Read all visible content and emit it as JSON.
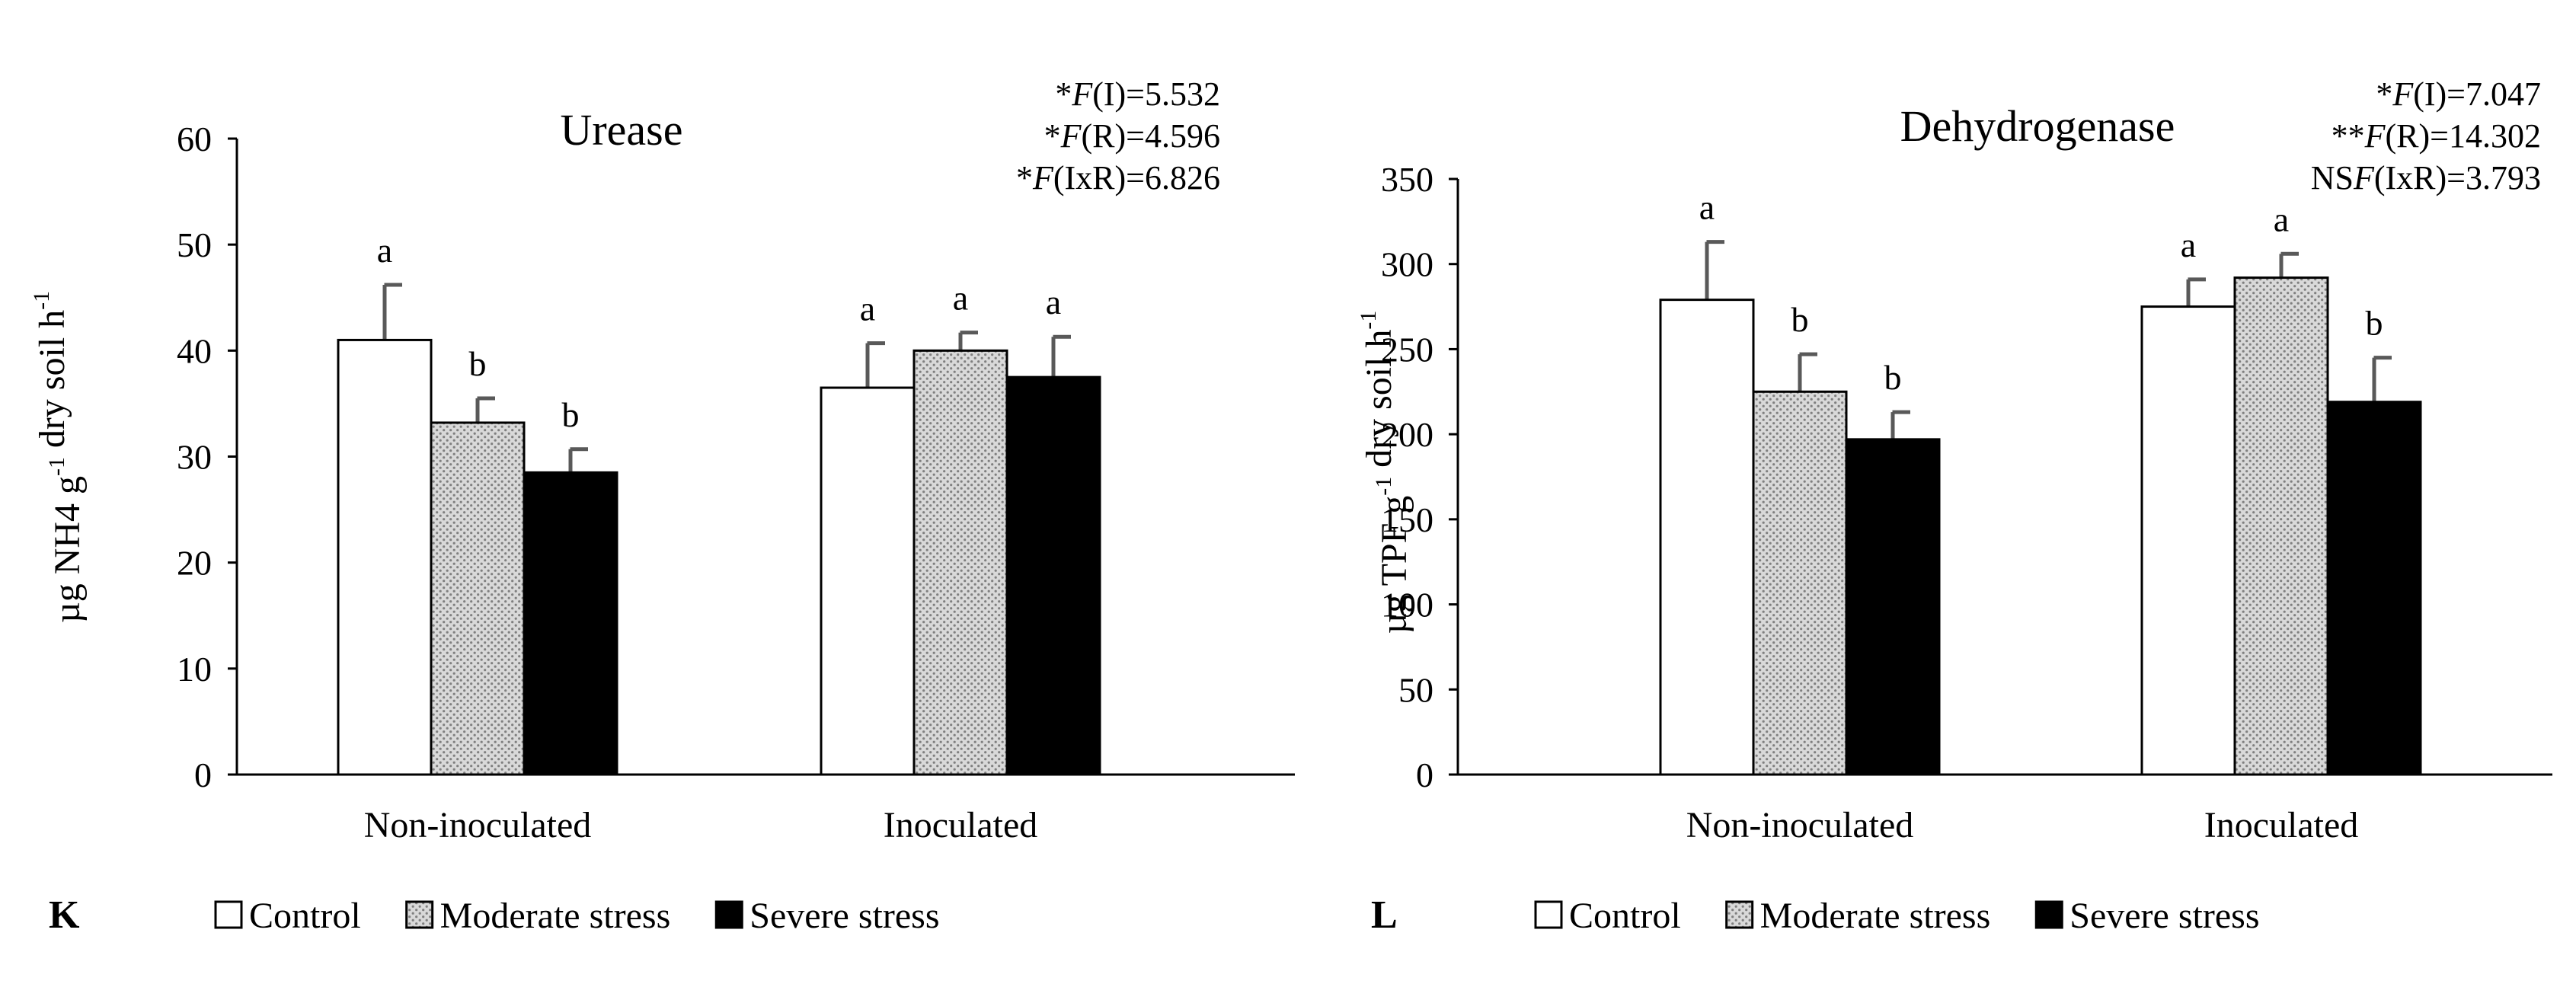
{
  "colors": {
    "control": "#ffffff",
    "moderate": "#d9d9d9",
    "moderate_dots": "#7f7f7f",
    "severe": "#000000",
    "axis": "#000000",
    "error": "#595959",
    "text": "#000000"
  },
  "legend_labels": [
    "Control",
    "Moderate stress",
    "Severe stress"
  ],
  "chart_data": [
    {
      "type": "bar",
      "panel_label": "K",
      "title": "Urease",
      "ylabel": "µg NH4 g⁻¹ dry soil h⁻¹",
      "xlabel": "",
      "ylim": [
        0,
        60
      ],
      "yticks": [
        0,
        10,
        20,
        30,
        40,
        50,
        60
      ],
      "categories": [
        "Non-inoculated",
        "Inoculated"
      ],
      "series": [
        {
          "name": "Control",
          "values": [
            41.0,
            36.5
          ],
          "errors": [
            5.2,
            4.2
          ],
          "letters": [
            "a",
            "a"
          ]
        },
        {
          "name": "Moderate stress",
          "values": [
            33.2,
            40.0
          ],
          "errors": [
            2.3,
            1.7
          ],
          "letters": [
            "b",
            "a"
          ]
        },
        {
          "name": "Severe stress",
          "values": [
            28.5,
            37.5
          ],
          "errors": [
            2.2,
            3.8
          ],
          "letters": [
            "b",
            "a"
          ]
        }
      ],
      "stats": [
        "*F(I)=5.532",
        "*F(R)=4.596",
        "*F(IxR)=6.826"
      ],
      "legend": [
        "Control",
        "Moderate stress",
        "Severe stress"
      ],
      "grid": false
    },
    {
      "type": "bar",
      "panel_label": "L",
      "title": "Dehydrogenase",
      "ylabel": "µg TPF g⁻¹ dry soil h⁻¹",
      "xlabel": "",
      "ylim": [
        0,
        350
      ],
      "yticks": [
        0,
        50,
        100,
        150,
        200,
        250,
        300,
        350
      ],
      "categories": [
        "Non-inoculated",
        "Inoculated"
      ],
      "series": [
        {
          "name": "Control",
          "values": [
            279,
            275
          ],
          "errors": [
            34,
            16
          ],
          "letters": [
            "a",
            "a"
          ]
        },
        {
          "name": "Moderate stress",
          "values": [
            225,
            292
          ],
          "errors": [
            22,
            14
          ],
          "letters": [
            "b",
            "a"
          ]
        },
        {
          "name": "Severe stress",
          "values": [
            197,
            219
          ],
          "errors": [
            16,
            26
          ],
          "letters": [
            "b",
            "b"
          ]
        }
      ],
      "stats": [
        "*F(I)=7.047",
        "**F(R)=14.302",
        "NSF(IxR)=3.793"
      ],
      "legend": [
        "Control",
        "Moderate stress",
        "Severe stress"
      ],
      "grid": false
    }
  ]
}
